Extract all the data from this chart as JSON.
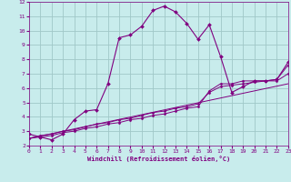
{
  "bg_color": "#c8ecec",
  "grid_color": "#a0c8c8",
  "line_color": "#800080",
  "xlim": [
    0,
    23
  ],
  "ylim": [
    2,
    12
  ],
  "xticks": [
    0,
    1,
    2,
    3,
    4,
    5,
    6,
    7,
    8,
    9,
    10,
    11,
    12,
    13,
    14,
    15,
    16,
    17,
    18,
    19,
    20,
    21,
    22,
    23
  ],
  "yticks": [
    2,
    3,
    4,
    5,
    6,
    7,
    8,
    9,
    10,
    11,
    12
  ],
  "xlabel": "Windchill (Refroidissement éolien,°C)",
  "curve1_x": [
    0,
    1,
    2,
    3,
    4,
    5,
    6,
    7,
    8,
    9,
    10,
    11,
    12,
    13,
    14,
    15,
    16,
    17,
    18,
    19,
    20,
    21,
    22,
    23
  ],
  "curve1_y": [
    2.8,
    2.6,
    2.4,
    2.8,
    3.8,
    4.4,
    4.5,
    6.3,
    9.5,
    9.7,
    10.3,
    11.4,
    11.7,
    11.3,
    10.5,
    9.4,
    10.4,
    8.2,
    5.7,
    6.1,
    6.5,
    6.5,
    6.6,
    7.8
  ],
  "line1_x": [
    0,
    1,
    2,
    3,
    4,
    5,
    6,
    7,
    8,
    9,
    10,
    11,
    12,
    13,
    14,
    15,
    16,
    17,
    18,
    19,
    20,
    21,
    22,
    23
  ],
  "line1_y": [
    2.5,
    2.6,
    2.7,
    2.9,
    3.0,
    3.2,
    3.3,
    3.5,
    3.6,
    3.8,
    3.9,
    4.1,
    4.2,
    4.4,
    4.6,
    4.7,
    5.8,
    6.3,
    6.3,
    6.5,
    6.5,
    6.5,
    6.6,
    7.6
  ],
  "line2_x": [
    0,
    1,
    2,
    3,
    4,
    5,
    6,
    7,
    8,
    9,
    10,
    11,
    12,
    13,
    14,
    15,
    16,
    17,
    18,
    19,
    20,
    21,
    22,
    23
  ],
  "line2_y": [
    2.5,
    2.7,
    2.8,
    3.0,
    3.1,
    3.3,
    3.5,
    3.6,
    3.8,
    3.9,
    4.1,
    4.3,
    4.4,
    4.6,
    4.7,
    4.9,
    5.7,
    6.1,
    6.2,
    6.3,
    6.4,
    6.5,
    6.5,
    7.0
  ],
  "line3_x": [
    0,
    23
  ],
  "line3_y": [
    2.5,
    6.3
  ]
}
